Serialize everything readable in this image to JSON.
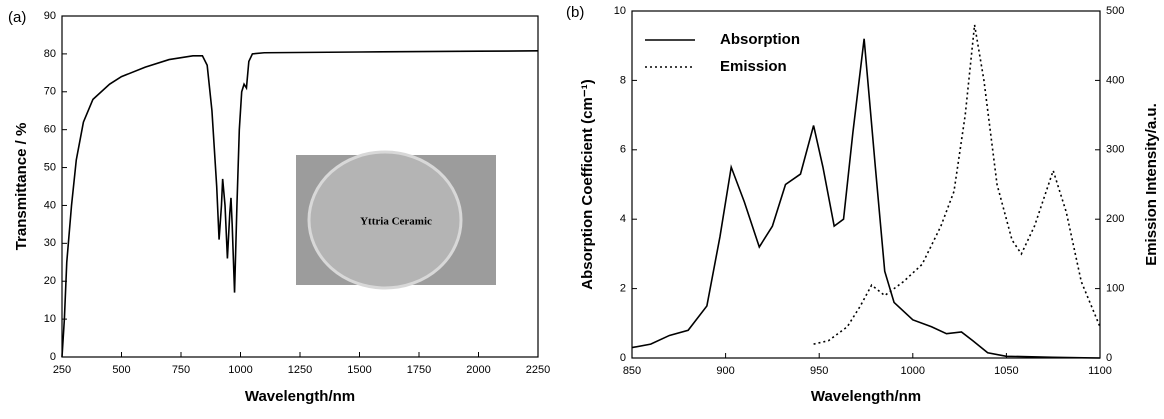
{
  "chart_data": [
    {
      "type": "line",
      "panel": "(a)",
      "xlabel": "Wavelength/nm",
      "ylabel": "Transmittance / %",
      "inset_text": "Yttria Ceramic",
      "xlim": [
        250,
        2250
      ],
      "xticks": [
        250,
        500,
        750,
        1000,
        1250,
        1500,
        1750,
        2000,
        2250
      ],
      "ylim": [
        0,
        90
      ],
      "yticks": [
        0,
        10,
        20,
        30,
        40,
        50,
        60,
        70,
        80,
        90
      ],
      "series": [
        {
          "color": "#000000",
          "line_style": "solid",
          "x": [
            250,
            260,
            270,
            290,
            310,
            340,
            380,
            450,
            500,
            600,
            700,
            800,
            840,
            860,
            880,
            900,
            910,
            920,
            925,
            935,
            945,
            955,
            960,
            965,
            975,
            985,
            995,
            1005,
            1015,
            1025,
            1035,
            1050,
            1100,
            1500,
            2000,
            2250
          ],
          "values": [
            0,
            10,
            25,
            40,
            52,
            62,
            68,
            72,
            74,
            76.5,
            78.5,
            79.5,
            79.5,
            77,
            65,
            45,
            31,
            40,
            47,
            40,
            26,
            38,
            42,
            35,
            17,
            40,
            60,
            70,
            72,
            71,
            78,
            80,
            80.3,
            80.5,
            80.7,
            80.8
          ]
        }
      ]
    },
    {
      "type": "line",
      "panel": "(b)",
      "xlabel": "Wavelength/nm",
      "ylabel": "Absorption Coefficient (cm⁻¹)",
      "y2label": "Emission Intensity/a.u.",
      "xlim": [
        850,
        1100
      ],
      "xticks": [
        850,
        900,
        950,
        1000,
        1050,
        1100
      ],
      "ylim": [
        0,
        10
      ],
      "yticks": [
        0,
        2,
        4,
        6,
        8,
        10
      ],
      "y2lim": [
        0,
        500
      ],
      "y2ticks": [
        0,
        100,
        200,
        300,
        400,
        500
      ],
      "series": [
        {
          "name": "Absorption",
          "color": "#000000",
          "line_style": "solid",
          "x": [
            850,
            860,
            870,
            880,
            890,
            897,
            903,
            910,
            918,
            925,
            932,
            940,
            947,
            952,
            958,
            963,
            968,
            974,
            980,
            985,
            990,
            1000,
            1010,
            1018,
            1026,
            1032,
            1040,
            1050,
            1075,
            1100
          ],
          "values": [
            0.3,
            0.4,
            0.65,
            0.8,
            1.5,
            3.5,
            5.5,
            4.5,
            3.2,
            3.8,
            5.0,
            5.3,
            6.7,
            5.5,
            3.8,
            4.0,
            6.5,
            9.2,
            5.5,
            2.5,
            1.6,
            1.1,
            0.9,
            0.7,
            0.75,
            0.5,
            0.15,
            0.05,
            0.02,
            0
          ]
        },
        {
          "name": "Emission",
          "color": "#000000",
          "line_style": "dotted",
          "axis": "y2",
          "x": [
            947,
            955,
            965,
            972,
            978,
            985,
            995,
            1005,
            1015,
            1022,
            1028,
            1033,
            1038,
            1045,
            1053,
            1058,
            1065,
            1075,
            1082,
            1090,
            1100
          ],
          "values": [
            20,
            25,
            45,
            75,
            105,
            90,
            110,
            135,
            190,
            240,
            350,
            480,
            400,
            250,
            170,
            150,
            190,
            270,
            210,
            110,
            45
          ]
        }
      ]
    }
  ]
}
